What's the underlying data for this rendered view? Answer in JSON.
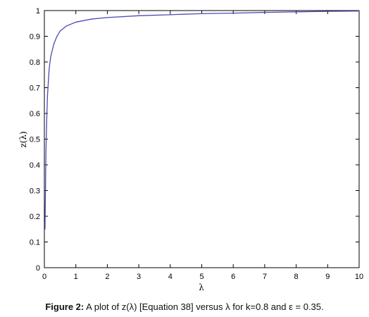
{
  "chart_data": {
    "type": "line",
    "xlabel": "λ",
    "ylabel": "z(λ)",
    "xlim": [
      0,
      10
    ],
    "ylim": [
      0,
      1
    ],
    "x_ticks": [
      "0",
      "1",
      "2",
      "3",
      "4",
      "5",
      "6",
      "7",
      "8",
      "9",
      "10"
    ],
    "y_ticks": [
      "0",
      "0.1",
      "0.2",
      "0.3",
      "0.4",
      "0.5",
      "0.6",
      "0.7",
      "0.8",
      "0.9",
      "1"
    ],
    "grid": false,
    "series": [
      {
        "color": "#4b4bb4",
        "x": [
          0.02,
          0.05,
          0.08,
          0.1,
          0.15,
          0.2,
          0.3,
          0.4,
          0.5,
          0.7,
          1.0,
          1.5,
          2.0,
          3.0,
          4.0,
          5.0,
          6.0,
          7.0,
          8.0,
          9.0,
          10.0
        ],
        "y": [
          0.15,
          0.45,
          0.6,
          0.67,
          0.77,
          0.82,
          0.87,
          0.9,
          0.92,
          0.94,
          0.955,
          0.967,
          0.973,
          0.98,
          0.984,
          0.988,
          0.99,
          0.993,
          0.995,
          0.997,
          0.998
        ]
      }
    ]
  },
  "caption": {
    "label": "Figure 2:",
    "text": " A plot of z(λ) [Equation 38] versus λ for k=0.8 and ε = 0.35."
  }
}
